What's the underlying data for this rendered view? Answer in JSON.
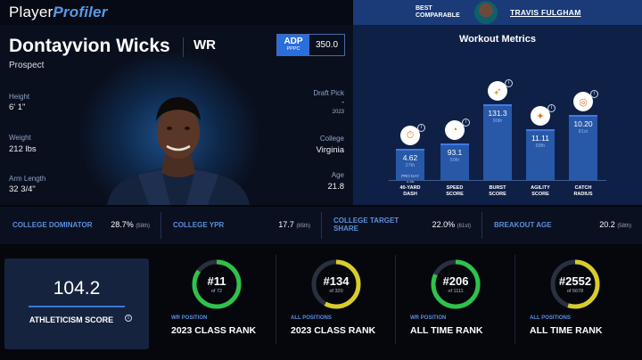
{
  "header": {
    "logo_part1": "Player",
    "logo_part2": "Profiler",
    "best_comparable_label": "BEST\nCOMPARABLE",
    "best_comparable_name": "TRAVIS FULGHAM"
  },
  "player": {
    "name": "Dontayvion Wicks",
    "position": "WR",
    "status": "Prospect",
    "adp_label": "ADP",
    "adp_sublabel": "PPPC",
    "adp_value": "350.0",
    "height_label": "Height",
    "height": "6' 1\"",
    "weight_label": "Weight",
    "weight": "212 lbs",
    "arm_label": "Arm Length",
    "arm": "32 3/4\"",
    "draft_label": "Draft Pick",
    "draft_pick": "-",
    "draft_year": "2023",
    "college_label": "College",
    "college": "Virginia",
    "age_label": "Age",
    "age": "21.8"
  },
  "workout": {
    "title": "Workout Metrics",
    "metrics": [
      {
        "label": "40-YARD\nDASH",
        "value": "4.62",
        "percentile": "27th",
        "pro_day": "PRO DAY\n4.58",
        "icon": "stopwatch-icon",
        "glyph": "⏱",
        "height_pct": 0.32
      },
      {
        "label": "SPEED\nSCORE",
        "value": "93.1",
        "percentile": "50th",
        "pro_day": "",
        "icon": "speedometer-icon",
        "glyph": "◔",
        "height_pct": 0.37
      },
      {
        "label": "BURST\nSCORE",
        "value": "131.3",
        "percentile": "90th",
        "pro_day": "",
        "icon": "rocket-icon",
        "glyph": "➶",
        "height_pct": 0.77
      },
      {
        "label": "AGILITY\nSCORE",
        "value": "11.11",
        "percentile": "68th",
        "pro_day": "",
        "icon": "runner-icon",
        "glyph": "✦",
        "height_pct": 0.52
      },
      {
        "label": "CATCH\nRADIUS",
        "value": "10.20",
        "percentile": "81st",
        "pro_day": "",
        "icon": "target-icon",
        "glyph": "◎",
        "height_pct": 0.66
      }
    ]
  },
  "college_stats": [
    {
      "label": "COLLEGE DOMINATOR",
      "value": "28.7%",
      "sub": "(58th)"
    },
    {
      "label": "COLLEGE YPR",
      "value": "17.7",
      "sub": "(85th)"
    },
    {
      "label": "COLLEGE TARGET\nSHARE",
      "value": "22.0%",
      "sub": "(61st)"
    },
    {
      "label": "BREAKOUT AGE",
      "value": "20.2",
      "sub": "(58th)"
    }
  ],
  "athleticism": {
    "value": "104.2",
    "label": "ATHLETICISM SCORE"
  },
  "ranks": [
    {
      "rank": "#11",
      "of": "of 72",
      "category": "WR POSITION",
      "title": "2023 CLASS RANK",
      "color": "#2fc24a",
      "fill": 0.85
    },
    {
      "rank": "#134",
      "of": "of 320",
      "category": "ALL POSITIONS",
      "title": "2023 CLASS RANK",
      "color": "#d8cc2a",
      "fill": 0.58
    },
    {
      "rank": "#206",
      "of": "of 1111",
      "category": "WR POSITION",
      "title": "ALL TIME RANK",
      "color": "#2fc24a",
      "fill": 0.82
    },
    {
      "rank": "#2552",
      "of": "of 5678",
      "category": "ALL POSITIONS",
      "title": "ALL TIME RANK",
      "color": "#d8cc2a",
      "fill": 0.55
    }
  ]
}
